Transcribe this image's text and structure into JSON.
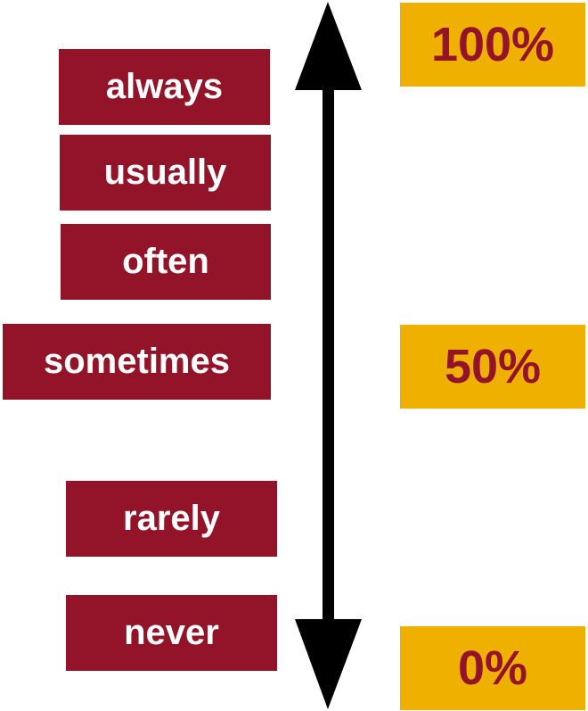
{
  "labels": [
    "always",
    "usually",
    "often",
    "sometimes",
    "rarely",
    "never"
  ],
  "percentages": [
    "100%",
    "50%",
    "0%"
  ]
}
